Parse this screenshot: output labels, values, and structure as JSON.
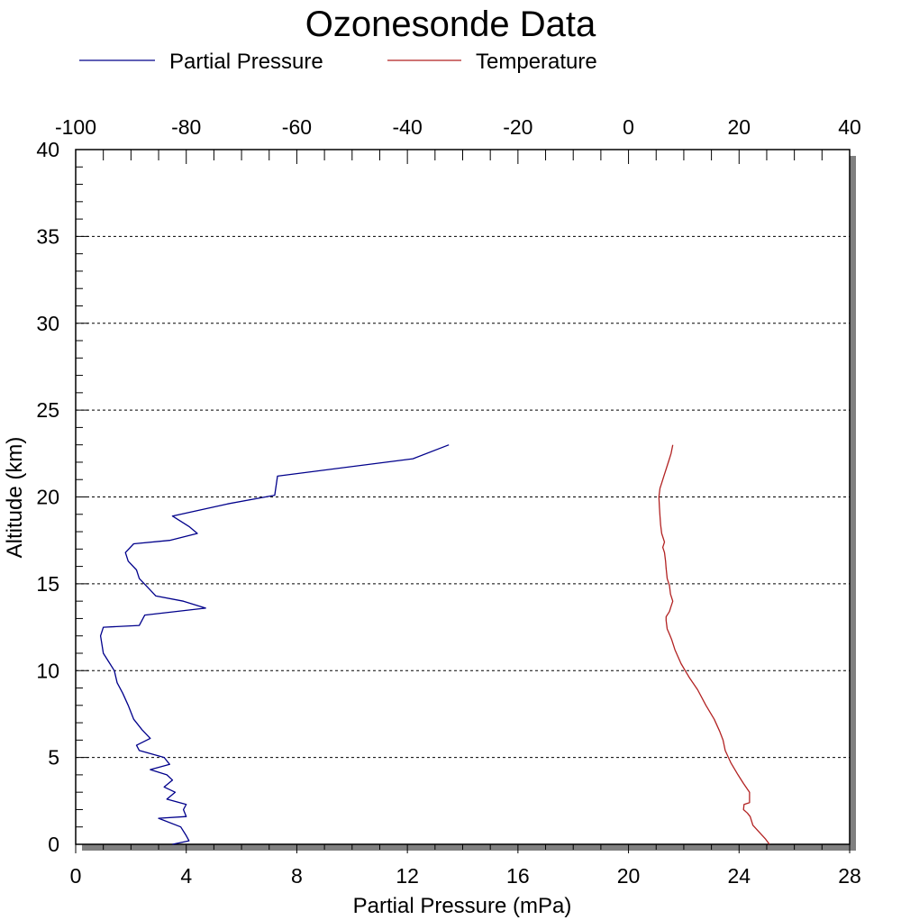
{
  "chart_data": {
    "type": "line",
    "title": "Ozonesonde Data",
    "xlabel": "Partial Pressure (mPa)",
    "ylabel": "Altitude (km)",
    "x_bottom_range": [
      0,
      28
    ],
    "x_bottom_ticks": [
      "0",
      "4",
      "8",
      "12",
      "16",
      "20",
      "24",
      "28"
    ],
    "x_top_range": [
      -100,
      40
    ],
    "x_top_ticks": [
      "-100",
      "-80",
      "-60",
      "-40",
      "-20",
      "0",
      "20",
      "40"
    ],
    "y_range": [
      0,
      40
    ],
    "y_ticks": [
      "0",
      "5",
      "10",
      "15",
      "20",
      "25",
      "30",
      "35",
      "40"
    ],
    "grid": "horizontal dashed",
    "legend_position": "top",
    "series": [
      {
        "name": "Partial Pressure",
        "color": "#00008b",
        "axis": "bottom",
        "points": [
          [
            3.5,
            0.0
          ],
          [
            4.1,
            0.2
          ],
          [
            4.0,
            0.5
          ],
          [
            3.8,
            1.0
          ],
          [
            3.0,
            1.5
          ],
          [
            4.0,
            1.6
          ],
          [
            3.9,
            2.0
          ],
          [
            4.0,
            2.3
          ],
          [
            3.3,
            2.6
          ],
          [
            3.6,
            3.0
          ],
          [
            3.2,
            3.3
          ],
          [
            3.5,
            3.7
          ],
          [
            3.3,
            4.0
          ],
          [
            2.7,
            4.3
          ],
          [
            3.4,
            4.6
          ],
          [
            3.2,
            5.0
          ],
          [
            2.3,
            5.4
          ],
          [
            2.2,
            5.7
          ],
          [
            2.7,
            6.1
          ],
          [
            2.4,
            6.6
          ],
          [
            2.1,
            7.2
          ],
          [
            1.9,
            8.0
          ],
          [
            1.7,
            8.7
          ],
          [
            1.5,
            9.3
          ],
          [
            1.4,
            10.0
          ],
          [
            1.2,
            10.5
          ],
          [
            1.0,
            11.0
          ],
          [
            0.9,
            12.0
          ],
          [
            1.0,
            12.5
          ],
          [
            2.3,
            12.6
          ],
          [
            2.5,
            13.2
          ],
          [
            4.7,
            13.6
          ],
          [
            3.9,
            14.0
          ],
          [
            2.9,
            14.3
          ],
          [
            2.6,
            14.8
          ],
          [
            2.3,
            15.3
          ],
          [
            2.2,
            15.8
          ],
          [
            1.9,
            16.3
          ],
          [
            1.8,
            16.8
          ],
          [
            2.1,
            17.3
          ],
          [
            3.4,
            17.5
          ],
          [
            4.4,
            17.9
          ],
          [
            4.1,
            18.3
          ],
          [
            3.5,
            18.9
          ],
          [
            5.5,
            19.6
          ],
          [
            7.2,
            20.1
          ],
          [
            7.3,
            21.2
          ],
          [
            12.2,
            22.2
          ],
          [
            13.5,
            23.0
          ]
        ]
      },
      {
        "name": "Temperature",
        "color": "#b22222",
        "axis": "top",
        "points": [
          [
            25.5,
            0.0
          ],
          [
            24.8,
            0.3
          ],
          [
            22.5,
            1.1
          ],
          [
            22.0,
            1.6
          ],
          [
            21.5,
            1.8
          ],
          [
            20.8,
            2.0
          ],
          [
            20.9,
            2.3
          ],
          [
            21.9,
            2.4
          ],
          [
            21.9,
            3.0
          ],
          [
            20.8,
            3.5
          ],
          [
            19.8,
            4.0
          ],
          [
            18.5,
            4.7
          ],
          [
            17.5,
            5.4
          ],
          [
            17.1,
            6.0
          ],
          [
            16.5,
            6.5
          ],
          [
            15.5,
            7.2
          ],
          [
            14.0,
            8.0
          ],
          [
            12.5,
            8.9
          ],
          [
            11.0,
            9.6
          ],
          [
            9.5,
            10.4
          ],
          [
            8.4,
            11.2
          ],
          [
            7.8,
            11.8
          ],
          [
            7.4,
            12.1
          ],
          [
            7.0,
            12.4
          ],
          [
            6.8,
            12.9
          ],
          [
            6.8,
            13.1
          ],
          [
            7.4,
            13.4
          ],
          [
            7.7,
            13.7
          ],
          [
            8.0,
            14.0
          ],
          [
            7.6,
            14.4
          ],
          [
            7.4,
            14.9
          ],
          [
            7.0,
            15.3
          ],
          [
            6.8,
            15.9
          ],
          [
            6.7,
            16.3
          ],
          [
            6.5,
            16.8
          ],
          [
            6.2,
            17.1
          ],
          [
            6.5,
            17.4
          ],
          [
            6.0,
            17.9
          ],
          [
            5.8,
            18.4
          ],
          [
            5.7,
            18.9
          ],
          [
            5.6,
            19.4
          ],
          [
            5.5,
            20.0
          ],
          [
            5.7,
            20.5
          ],
          [
            6.0,
            20.8
          ],
          [
            6.4,
            21.2
          ],
          [
            6.8,
            21.6
          ],
          [
            7.3,
            22.1
          ],
          [
            7.7,
            22.5
          ],
          [
            8.0,
            23.0
          ]
        ]
      }
    ]
  }
}
